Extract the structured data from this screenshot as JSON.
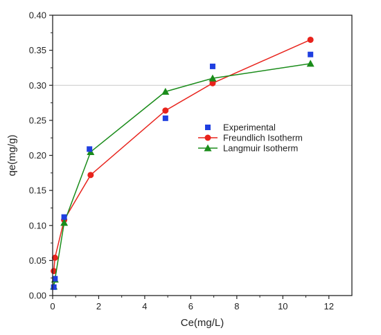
{
  "chart_data": {
    "type": "scatter",
    "xlabel": "Ce(mg/L)",
    "ylabel": "qe(mg/g)",
    "xlim": [
      0,
      13
    ],
    "ylim": [
      0,
      0.4
    ],
    "x_ticks": [
      "0",
      "2",
      "4",
      "6",
      "8",
      "10",
      "12"
    ],
    "y_ticks": [
      "0.00",
      "0.05",
      "0.10",
      "0.15",
      "0.20",
      "0.25",
      "0.30",
      "0.35",
      "0.40"
    ],
    "grid": false,
    "legend_position": "center-right",
    "series": [
      {
        "name": "Experimental",
        "kind": "scatter",
        "marker": "square",
        "color": "#1f3fe0",
        "points": [
          [
            0.05,
            0.012
          ],
          [
            0.1,
            0.024
          ],
          [
            0.5,
            0.112
          ],
          [
            1.6,
            0.209
          ],
          [
            4.9,
            0.253
          ],
          [
            6.95,
            0.327
          ],
          [
            11.2,
            0.344
          ]
        ]
      },
      {
        "name": "Freundlich Isotherm",
        "kind": "line",
        "marker": "circle",
        "color": "#e8231c",
        "points": [
          [
            0.05,
            0.035
          ],
          [
            0.1,
            0.054
          ],
          [
            0.5,
            0.108
          ],
          [
            1.65,
            0.172
          ],
          [
            4.9,
            0.264
          ],
          [
            6.95,
            0.303
          ],
          [
            11.2,
            0.365
          ]
        ]
      },
      {
        "name": "Langmuir Isotherm",
        "kind": "line",
        "marker": "triangle",
        "color": "#1a8c1a",
        "points": [
          [
            0.05,
            0.013
          ],
          [
            0.1,
            0.023
          ],
          [
            0.5,
            0.104
          ],
          [
            1.65,
            0.205
          ],
          [
            4.9,
            0.291
          ],
          [
            6.95,
            0.31
          ],
          [
            11.2,
            0.331
          ]
        ]
      }
    ]
  }
}
